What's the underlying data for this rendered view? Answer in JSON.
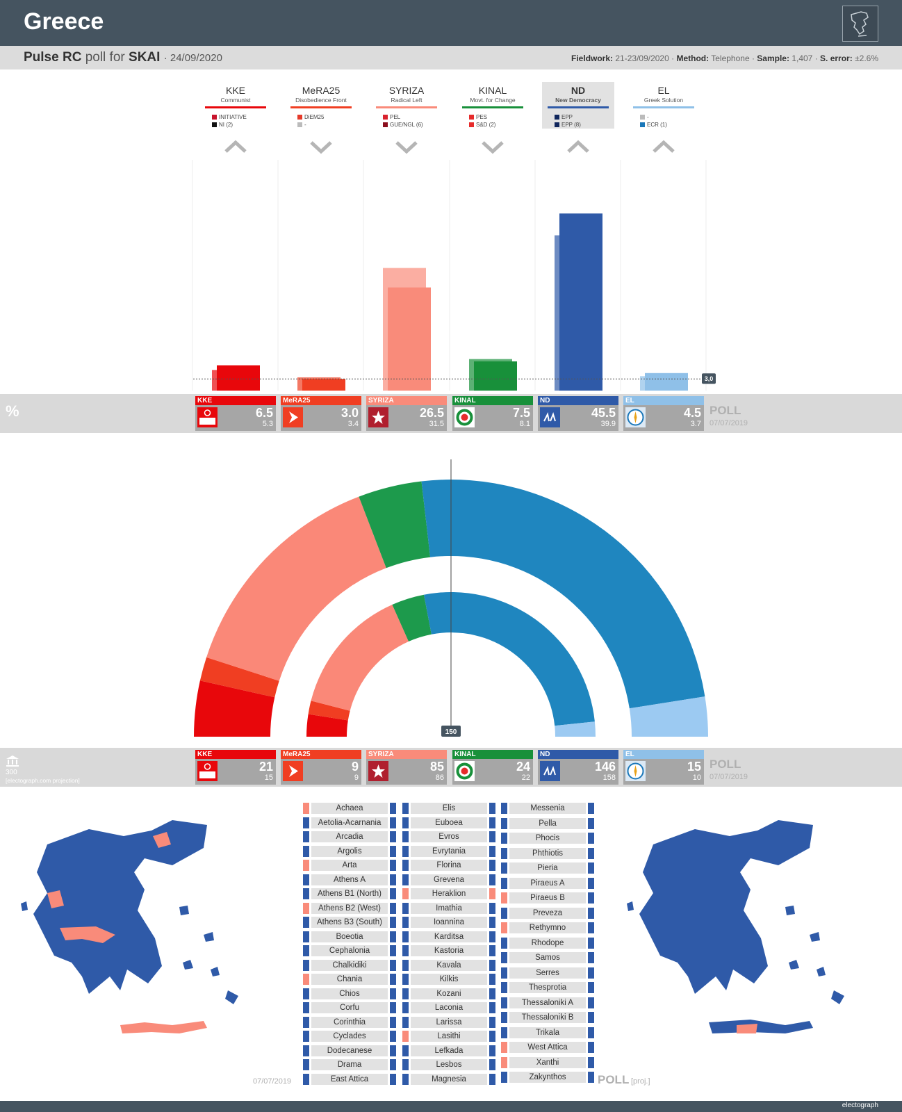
{
  "header": {
    "title": "Greece"
  },
  "poll": {
    "pollster": "Pulse RC",
    "connector": "poll for",
    "client": "SKAI",
    "date": "· 24/09/2020",
    "fieldwork_label": "Fieldwork:",
    "fieldwork": "21-23/09/2020",
    "method_label": "Method:",
    "method": "Telephone",
    "sample_label": "Sample:",
    "sample": "1,407",
    "error_label": "S. error:",
    "error": "±2.6%"
  },
  "labels": {
    "percent_symbol": "%",
    "poll_word": "POLL",
    "previous_date": "07/07/2019",
    "threshold_label": "3,0",
    "majority_label": "150",
    "seats_total": "300",
    "seats_note": "[electograph.com projection]",
    "map_date": "07/07/2019",
    "map_poll": "POLL",
    "map_proj": "[proj.]",
    "brand": "electograph"
  },
  "colors": {
    "KKE": "#e8070b",
    "MeRA25": "#f03e22",
    "SYRIZA": "#f98b7a",
    "KINAL": "#18903a",
    "ND": "#2f5aa8",
    "EL": "#8fc0e8",
    "ND_seats": "#1f86bf",
    "SYRIZA_seats": "#fa8878",
    "KINAL_seats": "#1d9a4c",
    "EL_seats": "#9ccaf2"
  },
  "parties": [
    {
      "abbr": "KKE",
      "desc": "Communist",
      "tags": [
        [
          "#c8142d",
          "INITIATIVE"
        ],
        [
          "#111111",
          "NI (2)"
        ]
      ],
      "trend": "up",
      "logo": "kke-logo"
    },
    {
      "abbr": "MeRA25",
      "desc": "Disobedience Front",
      "tags": [
        [
          "#e53a2a",
          "DiEM25"
        ],
        [
          "#bbbbbb",
          "-"
        ]
      ],
      "trend": "down",
      "logo": "mera25-logo"
    },
    {
      "abbr": "SYRIZA",
      "desc": "Radical Left",
      "tags": [
        [
          "#d9232e",
          "PEL"
        ],
        [
          "#8b0e1d",
          "GUE/NGL (6)"
        ]
      ],
      "trend": "down",
      "logo": "syriza-logo"
    },
    {
      "abbr": "KINAL",
      "desc": "Movt. for Change",
      "tags": [
        [
          "#e62b2b",
          "PES"
        ],
        [
          "#e62b2b",
          "S&D (2)"
        ]
      ],
      "trend": "down",
      "logo": "kinal-logo"
    },
    {
      "abbr": "ND",
      "desc": "New Democracy",
      "tags": [
        [
          "#10265c",
          "EPP"
        ],
        [
          "#10265c",
          "EPP (8)"
        ]
      ],
      "trend": "up",
      "logo": "nd-logo",
      "highlight": true
    },
    {
      "abbr": "EL",
      "desc": "Greek Solution",
      "tags": [
        [
          "#bbbbbb",
          "-"
        ],
        [
          "#1a77b9",
          "ECR (1)"
        ]
      ],
      "trend": "up",
      "logo": "el-logo"
    }
  ],
  "chart_data": [
    {
      "type": "bar",
      "categories": [
        "KKE",
        "MeRA25",
        "SYRIZA",
        "KINAL",
        "ND",
        "EL"
      ],
      "series": [
        {
          "name": "POLL",
          "values": [
            6.5,
            3.0,
            26.5,
            7.5,
            45.5,
            4.5
          ]
        },
        {
          "name": "07/07/2019",
          "values": [
            5.3,
            3.4,
            31.5,
            8.1,
            39.9,
            3.7
          ]
        }
      ],
      "threshold": 3.0,
      "ylim": [
        0,
        50
      ],
      "value_labels": [
        "6.5",
        "3.0",
        "26.5",
        "7.5",
        "45.5",
        "4.5"
      ],
      "prev_labels": [
        "5.3",
        "3.4",
        "31.5",
        "8.1",
        "39.9",
        "3.7"
      ]
    },
    {
      "type": "pie",
      "subtype": "parliament-semicircle",
      "categories": [
        "KKE",
        "MeRA25",
        "SYRIZA",
        "KINAL",
        "ND",
        "EL"
      ],
      "series": [
        {
          "name": "POLL",
          "values": [
            21,
            9,
            85,
            24,
            146,
            15
          ]
        },
        {
          "name": "07/07/2019",
          "values": [
            15,
            9,
            86,
            22,
            158,
            10
          ]
        }
      ],
      "total": 300,
      "majority": 150,
      "value_labels": [
        "21",
        "9",
        "85",
        "24",
        "146",
        "15"
      ],
      "prev_labels": [
        "15",
        "9",
        "86",
        "22",
        "158",
        "10"
      ]
    }
  ],
  "constituencies": [
    [
      [
        "Achaea",
        "SYRIZA",
        "ND"
      ],
      [
        "Aetolia-Acarnania",
        "ND",
        "ND"
      ],
      [
        "Arcadia",
        "ND",
        "ND"
      ],
      [
        "Argolis",
        "ND",
        "ND"
      ],
      [
        "Arta",
        "SYRIZA",
        "ND"
      ],
      [
        "Athens A",
        "ND",
        "ND"
      ],
      [
        "Athens B1 (North)",
        "ND",
        "ND"
      ],
      [
        "Athens B2 (West)",
        "SYRIZA",
        "ND"
      ],
      [
        "Athens B3 (South)",
        "ND",
        "ND"
      ],
      [
        "Boeotia",
        "ND",
        "ND"
      ],
      [
        "Cephalonia",
        "ND",
        "ND"
      ],
      [
        "Chalkidiki",
        "ND",
        "ND"
      ],
      [
        "Chania",
        "SYRIZA",
        "ND"
      ],
      [
        "Chios",
        "ND",
        "ND"
      ],
      [
        "Corfu",
        "ND",
        "ND"
      ],
      [
        "Corinthia",
        "ND",
        "ND"
      ],
      [
        "Cyclades",
        "ND",
        "ND"
      ],
      [
        "Dodecanese",
        "ND",
        "ND"
      ],
      [
        "Drama",
        "ND",
        "ND"
      ],
      [
        "East Attica",
        "ND",
        "ND"
      ]
    ],
    [
      [
        "Elis",
        "ND",
        "ND"
      ],
      [
        "Euboea",
        "ND",
        "ND"
      ],
      [
        "Evros",
        "ND",
        "ND"
      ],
      [
        "Evrytania",
        "ND",
        "ND"
      ],
      [
        "Florina",
        "ND",
        "ND"
      ],
      [
        "Grevena",
        "ND",
        "ND"
      ],
      [
        "Heraklion",
        "SYRIZA",
        "SYRIZA"
      ],
      [
        "Imathia",
        "ND",
        "ND"
      ],
      [
        "Ioannina",
        "ND",
        "ND"
      ],
      [
        "Karditsa",
        "ND",
        "ND"
      ],
      [
        "Kastoria",
        "ND",
        "ND"
      ],
      [
        "Kavala",
        "ND",
        "ND"
      ],
      [
        "Kilkis",
        "ND",
        "ND"
      ],
      [
        "Kozani",
        "ND",
        "ND"
      ],
      [
        "Laconia",
        "ND",
        "ND"
      ],
      [
        "Larissa",
        "ND",
        "ND"
      ],
      [
        "Lasithi",
        "SYRIZA",
        "ND"
      ],
      [
        "Lefkada",
        "ND",
        "ND"
      ],
      [
        "Lesbos",
        "ND",
        "ND"
      ],
      [
        "Magnesia",
        "ND",
        "ND"
      ]
    ],
    [
      [
        "Messenia",
        "ND",
        "ND"
      ],
      [
        "Pella",
        "ND",
        "ND"
      ],
      [
        "Phocis",
        "ND",
        "ND"
      ],
      [
        "Phthiotis",
        "ND",
        "ND"
      ],
      [
        "Pieria",
        "ND",
        "ND"
      ],
      [
        "Piraeus A",
        "ND",
        "ND"
      ],
      [
        "Piraeus B",
        "SYRIZA",
        "ND"
      ],
      [
        "Preveza",
        "ND",
        "ND"
      ],
      [
        "Rethymno",
        "SYRIZA",
        "ND"
      ],
      [
        "Rhodope",
        "ND",
        "ND"
      ],
      [
        "Samos",
        "ND",
        "ND"
      ],
      [
        "Serres",
        "ND",
        "ND"
      ],
      [
        "Thesprotia",
        "ND",
        "ND"
      ],
      [
        "Thessaloniki A",
        "ND",
        "ND"
      ],
      [
        "Thessaloniki B",
        "ND",
        "ND"
      ],
      [
        "Trikala",
        "ND",
        "ND"
      ],
      [
        "West Attica",
        "SYRIZA",
        "ND"
      ],
      [
        "Xanthi",
        "SYRIZA",
        "ND"
      ],
      [
        "Zakynthos",
        "ND",
        "ND"
      ]
    ]
  ]
}
